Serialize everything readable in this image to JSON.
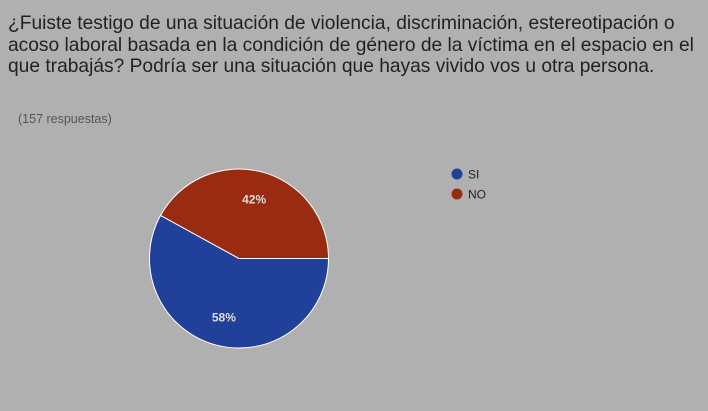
{
  "title": "¿Fuiste testigo de una situación de violencia, discriminación, estereotipación o acoso laboral basada en la condición de género de la víctima en el espacio en el que trabajás? Podría ser una situación que hayas vivido vos u otra persona.",
  "response_count": "(157 respuestas)",
  "chart_data": {
    "type": "pie",
    "legend_position": "right",
    "slices": [
      {
        "label": "SI",
        "value": 58,
        "display": "58%",
        "color": "#21409a"
      },
      {
        "label": "NO",
        "value": 42,
        "display": "42%",
        "color": "#992b10"
      }
    ]
  }
}
